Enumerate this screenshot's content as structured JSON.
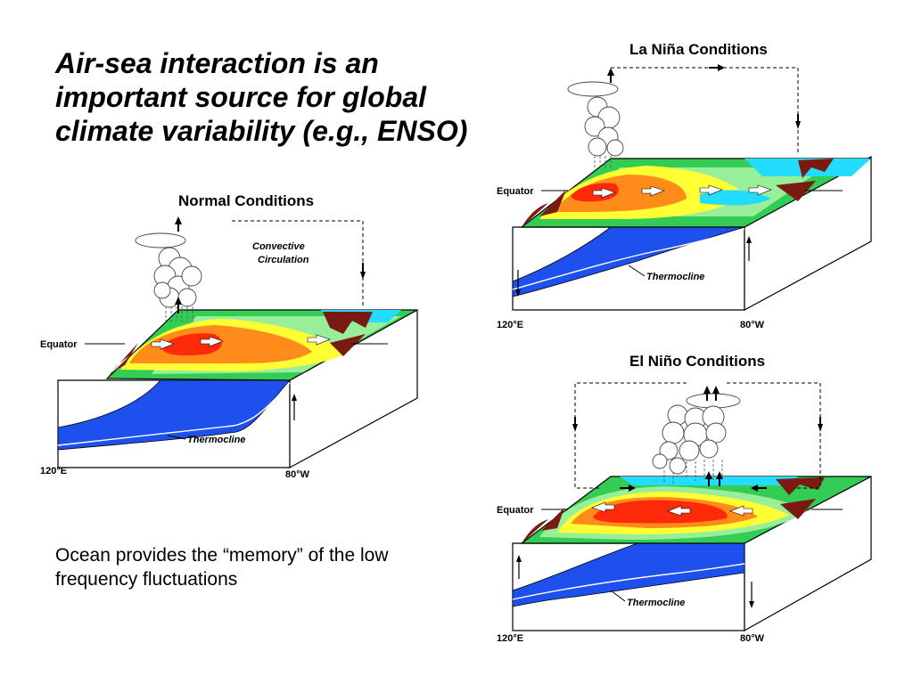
{
  "title": "Air-sea interaction is an important source for global climate variability (e.g., ENSO)",
  "note": "Ocean provides the “memory” of the low frequency fluctuations",
  "panels": {
    "normal": {
      "title": "Normal Conditions",
      "equator": "Equator",
      "thermocline": "Thermocline",
      "west": "120°E",
      "east": "80°W",
      "circulation_line1": "Convective",
      "circulation_line2": "Circulation"
    },
    "lanina": {
      "title": "La Niña Conditions",
      "equator": "Equator",
      "thermocline": "Thermocline",
      "west": "120°E",
      "east": "80°W"
    },
    "elnino": {
      "title": "El Niño Conditions",
      "equator": "Equator",
      "thermocline": "Thermocline",
      "west": "120°E",
      "east": "80°W"
    }
  },
  "colors": {
    "warm": "#ff2a0a",
    "orange": "#ff8c1a",
    "yellow": "#ffff33",
    "green": "#33cc55",
    "lightgreen": "#99ee99",
    "cyan": "#22ddff",
    "land": "#7a1a10",
    "deep_ocean": "#1e50ee"
  }
}
